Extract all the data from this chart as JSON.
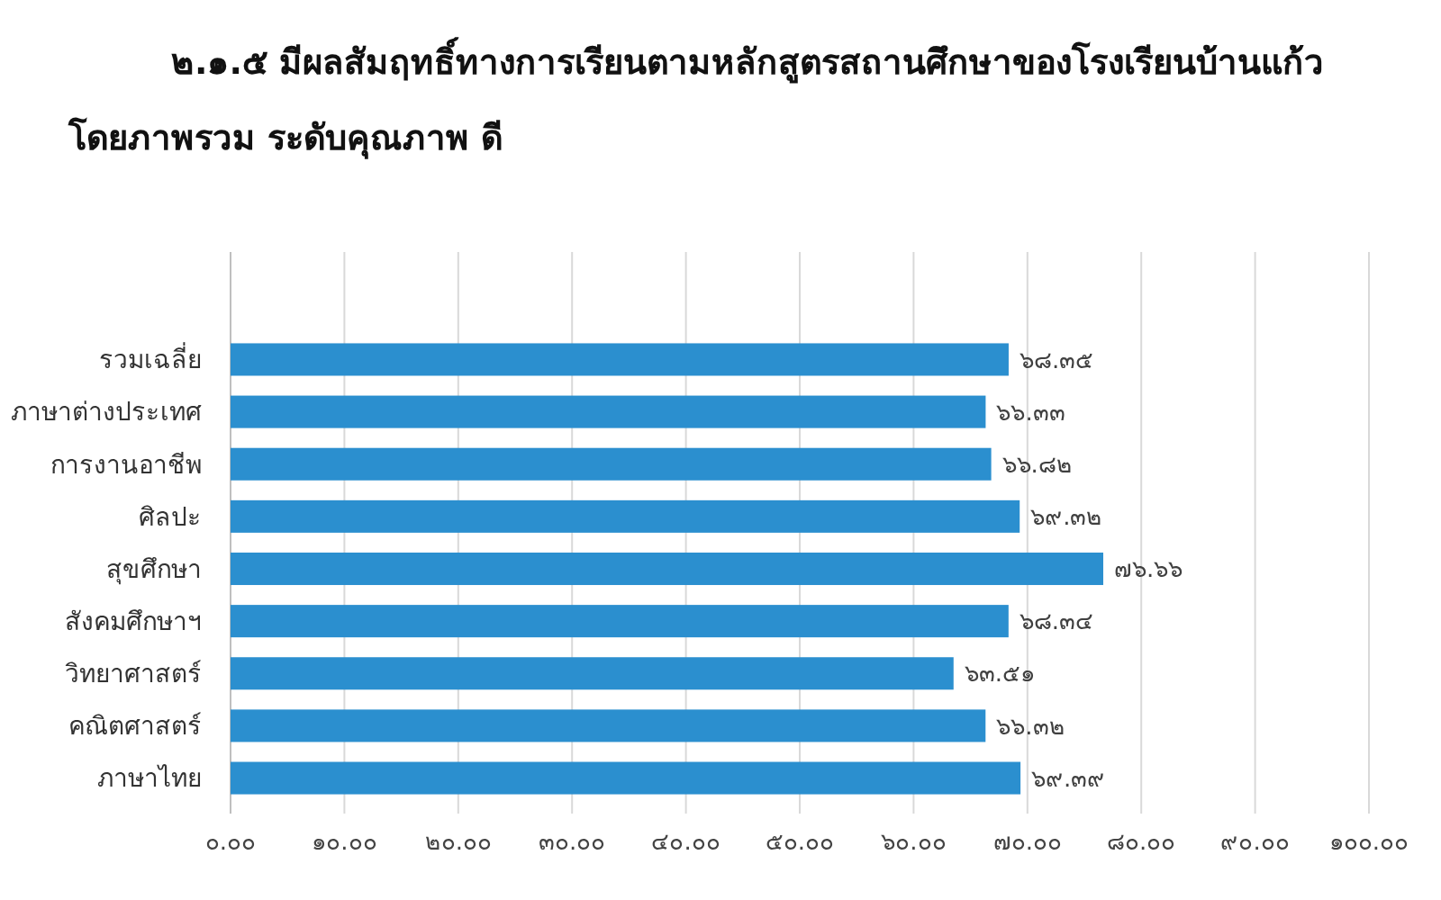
{
  "chart_data": {
    "type": "bar",
    "orientation": "horizontal",
    "title": "๒.๑.๕ มีผลสัมฤทธิ์ทางการเรียนตามหลักสูตรสถานศึกษาของโรงเรียนบ้านแก้ว โดยภาพรวม ระดับคุณภาพ ดี",
    "categories": [
      "รวมเฉลี่ย",
      "ภาษาต่างประเทศ",
      "การงานอาชีพ",
      "ศิลปะ",
      "สุขศึกษา",
      "สังคมศึกษาฯ",
      "วิทยาศาสตร์",
      "คณิตศาสตร์",
      "ภาษาไทย"
    ],
    "values": [
      68.35,
      66.33,
      66.82,
      69.32,
      76.66,
      68.34,
      63.51,
      66.32,
      69.39
    ],
    "value_labels": [
      "๖๘.๓๕",
      "๖๖.๓๓",
      "๖๖.๘๒",
      "๖๙.๓๒",
      "๗๖.๖๖",
      "๖๘.๓๔",
      "๖๓.๕๑",
      "๖๖.๓๒",
      "๖๙.๓๙"
    ],
    "color": "#2b8fcf",
    "xlim": [
      0,
      100
    ],
    "xticks": [
      {
        "value": 0,
        "label": "๐.๐๐"
      },
      {
        "value": 10,
        "label": "๑๐.๐๐"
      },
      {
        "value": 20,
        "label": "๒๐.๐๐"
      },
      {
        "value": 30,
        "label": "๓๐.๐๐"
      },
      {
        "value": 40,
        "label": "๔๐.๐๐"
      },
      {
        "value": 50,
        "label": "๕๐.๐๐"
      },
      {
        "value": 60,
        "label": "๖๐.๐๐"
      },
      {
        "value": 70,
        "label": "๗๐.๐๐"
      },
      {
        "value": 80,
        "label": "๘๐.๐๐"
      },
      {
        "value": 90,
        "label": "๙๐.๐๐"
      },
      {
        "value": 100,
        "label": "๑๐๐.๐๐"
      }
    ],
    "grid": "x"
  }
}
